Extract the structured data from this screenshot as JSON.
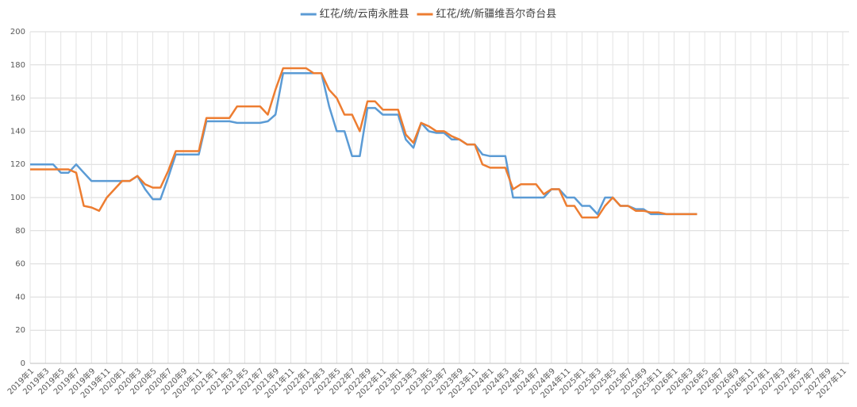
{
  "chart_data": {
    "type": "line",
    "categories": [
      "2019年1",
      null,
      "2019年3",
      null,
      "2019年5",
      null,
      "2019年7",
      null,
      "2019年9",
      null,
      "2019年11",
      null,
      "2020年1",
      null,
      "2020年3",
      null,
      "2020年5",
      null,
      "2020年7",
      null,
      "2020年9",
      null,
      "2020年11",
      null,
      "2021年1",
      null,
      "2021年3",
      null,
      "2021年5",
      null,
      "2021年7",
      null,
      "2021年9",
      null,
      "2021年11",
      null,
      "2022年1",
      null,
      "2022年3",
      null,
      "2022年5",
      null,
      "2022年7",
      null,
      "2022年9",
      null,
      "2022年11",
      null,
      "2023年1",
      null,
      "2023年3",
      null,
      "2023年5",
      null,
      "2023年7",
      null,
      "2023年9",
      null,
      "2023年11",
      null,
      "2024年1",
      null,
      "2024年3",
      null,
      "2024年5",
      null,
      "2024年7",
      null,
      "2024年9",
      null,
      "2024年11",
      null,
      "2025年1",
      null,
      "2025年3",
      null,
      "2025年5",
      null,
      "2025年7",
      null,
      "2025年9",
      null,
      "2025年11",
      null,
      "2026年1",
      null,
      "2026年3",
      null,
      "2026年5",
      null,
      "2026年7",
      null,
      "2026年9",
      null,
      "2026年11",
      null,
      "2027年1",
      null,
      "2027年3",
      null,
      "2027年5",
      null,
      "2027年7",
      null,
      "2027年9",
      null,
      "2027年11"
    ],
    "series": [
      {
        "name": "红花/统/云南永胜县",
        "color": "#5b9bd5",
        "values": [
          120,
          120,
          120,
          120,
          115,
          115,
          120,
          115,
          110,
          110,
          110,
          110,
          110,
          110,
          113,
          105,
          99,
          99,
          112,
          126,
          126,
          126,
          126,
          146,
          146,
          146,
          146,
          145,
          145,
          145,
          145,
          146,
          150,
          175,
          175,
          175,
          175,
          175,
          175,
          155,
          140,
          140,
          125,
          125,
          154,
          154,
          150,
          150,
          150,
          135,
          130,
          145,
          140,
          139,
          139,
          135,
          135,
          132,
          132,
          126,
          125,
          125,
          125,
          100,
          100,
          100,
          100,
          100,
          105,
          105,
          100,
          100,
          95,
          95,
          90,
          100,
          100,
          95,
          95,
          93,
          93,
          90,
          90,
          90,
          90,
          90,
          90,
          90,
          null,
          null,
          null,
          null,
          null,
          null,
          null,
          null,
          null,
          null,
          null,
          null,
          null,
          null,
          null,
          null,
          null,
          null,
          null
        ]
      },
      {
        "name": "红花/统/新疆维吾尔奇台县",
        "color": "#ed7d31",
        "values": [
          117,
          117,
          117,
          117,
          117,
          117,
          115,
          95,
          94,
          92,
          100,
          105,
          110,
          110,
          113,
          108,
          106,
          106,
          116,
          128,
          128,
          128,
          128,
          148,
          148,
          148,
          148,
          155,
          155,
          155,
          155,
          150,
          165,
          178,
          178,
          178,
          178,
          175,
          175,
          165,
          160,
          150,
          150,
          140,
          158,
          158,
          153,
          153,
          153,
          138,
          133,
          145,
          143,
          140,
          140,
          137,
          135,
          132,
          132,
          120,
          118,
          118,
          118,
          105,
          108,
          108,
          108,
          102,
          105,
          105,
          95,
          95,
          88,
          88,
          88,
          95,
          100,
          95,
          95,
          92,
          92,
          91,
          91,
          90,
          90,
          90,
          90,
          90,
          null,
          null,
          null,
          null,
          null,
          null,
          null,
          null,
          null,
          null,
          null,
          null,
          null,
          null,
          null,
          null,
          null,
          null,
          null
        ]
      }
    ],
    "ylim": [
      0,
      200
    ],
    "yticks": [
      0,
      20,
      40,
      60,
      80,
      100,
      120,
      140,
      160,
      180,
      200
    ],
    "grid": true,
    "legend": "top"
  }
}
